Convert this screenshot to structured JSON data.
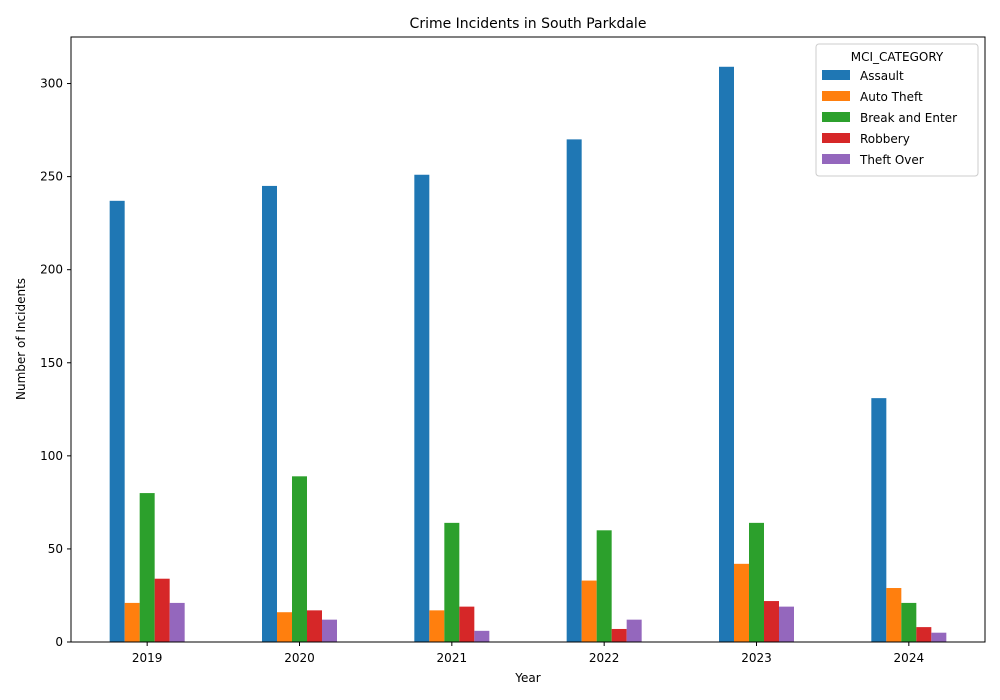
{
  "chart_data": {
    "type": "bar",
    "title": "Crime Incidents in South Parkdale",
    "xlabel": "Year",
    "ylabel": "Number of Incidents",
    "categories": [
      "2019",
      "2020",
      "2021",
      "2022",
      "2023",
      "2024"
    ],
    "ylim": [
      0,
      325
    ],
    "yticks": [
      0,
      50,
      100,
      150,
      200,
      250,
      300
    ],
    "grid": false,
    "legend": {
      "title": "MCI_CATEGORY",
      "placement": "top-right"
    },
    "series": [
      {
        "name": "Assault",
        "color": "#1f77b4",
        "values": [
          237,
          245,
          251,
          270,
          309,
          131
        ]
      },
      {
        "name": "Auto Theft",
        "color": "#ff7f0e",
        "values": [
          21,
          16,
          17,
          33,
          42,
          29
        ]
      },
      {
        "name": "Break and Enter",
        "color": "#2ca02c",
        "values": [
          80,
          89,
          64,
          60,
          64,
          21
        ]
      },
      {
        "name": "Robbery",
        "color": "#d62728",
        "values": [
          34,
          17,
          19,
          7,
          22,
          8
        ]
      },
      {
        "name": "Theft Over",
        "color": "#9467bd",
        "values": [
          21,
          12,
          6,
          12,
          19,
          5
        ]
      }
    ]
  }
}
